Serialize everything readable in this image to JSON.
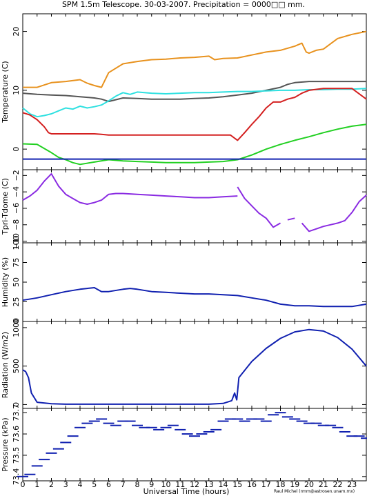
{
  "title": "SPM 1.5m Telescope. 30-03-2007. Precipitation = 0000□□ mm.",
  "xlabel": "Universal Time (hours)",
  "credit": "Raul Michel (rmm@astrosen.unam.mx)",
  "x_ticks": [
    "0",
    "1",
    "2",
    "3",
    "4",
    "5",
    "6",
    "7",
    "8",
    "9",
    "10",
    "11",
    "12",
    "13",
    "14",
    "15",
    "16",
    "17",
    "18",
    "19",
    "20",
    "21",
    "22",
    "23"
  ],
  "colors": {
    "orange": "#e8921e",
    "dark_gray": "#555555",
    "cyan": "#2ee0e0",
    "red": "#d42020",
    "green": "#22d022",
    "blue": "#1020b0",
    "purple": "#8a2be2"
  },
  "chart_data": [
    {
      "type": "line",
      "ylabel": "Temperature (C)",
      "ylim": [
        -3.5,
        23
      ],
      "y_ticks": [
        0,
        10,
        20
      ],
      "xlim": [
        0,
        24
      ],
      "series": [
        {
          "color": "orange",
          "x": [
            0,
            1,
            2,
            3,
            4,
            4.5,
            5,
            5.5,
            6,
            7,
            8,
            9,
            10,
            11,
            12,
            13,
            13.4,
            14,
            15,
            16,
            17,
            18,
            19,
            19.5,
            19.8,
            20,
            20.5,
            21,
            22,
            23,
            24
          ],
          "y": [
            10.5,
            10.5,
            11.3,
            11.5,
            11.8,
            11.2,
            10.8,
            10.5,
            13,
            14.5,
            14.9,
            15.2,
            15.3,
            15.5,
            15.6,
            15.8,
            15.2,
            15.4,
            15.5,
            16,
            16.5,
            16.8,
            17.5,
            18,
            16.5,
            16.3,
            16.8,
            17,
            18.8,
            19.5,
            20
          ]
        },
        {
          "color": "dark_gray",
          "x": [
            0,
            1,
            2,
            3,
            4,
            5,
            5.5,
            6,
            7,
            8,
            9,
            10,
            11,
            12,
            13,
            14,
            15,
            16,
            17,
            18,
            18.5,
            19,
            20,
            21,
            22,
            23,
            24
          ],
          "y": [
            9.5,
            9.3,
            9.2,
            9.1,
            8.9,
            8.7,
            8.5,
            8.1,
            8.7,
            8.6,
            8.5,
            8.5,
            8.5,
            8.6,
            8.7,
            8.9,
            9.2,
            9.5,
            10,
            10.5,
            11,
            11.3,
            11.5,
            11.5,
            11.5,
            11.5,
            11.5
          ]
        },
        {
          "color": "cyan",
          "x": [
            0,
            0.5,
            1,
            1.5,
            2,
            2.5,
            3,
            3.5,
            4,
            4.5,
            5,
            5.5,
            6,
            6.5,
            7,
            7.5,
            8,
            9,
            10,
            11,
            12,
            13,
            14,
            15,
            16,
            17,
            18,
            19,
            20,
            21,
            22,
            23,
            24
          ],
          "y": [
            7,
            6,
            5.5,
            5.7,
            6,
            6.5,
            7,
            6.8,
            7.3,
            7,
            7.2,
            7.5,
            8.2,
            9,
            9.6,
            9.3,
            9.7,
            9.5,
            9.4,
            9.5,
            9.6,
            9.6,
            9.7,
            9.8,
            9.8,
            9.9,
            10,
            10,
            10.1,
            10.1,
            10.2,
            10.2,
            10.3
          ]
        },
        {
          "color": "red",
          "x": [
            0,
            0.5,
            1,
            1.5,
            1.8,
            2,
            3,
            4,
            5,
            5.5,
            6,
            7,
            8,
            9,
            10,
            11,
            12,
            13,
            14,
            14.5,
            15,
            15.5,
            16,
            16.5,
            17,
            17.5,
            18,
            18.5,
            19,
            19.5,
            20,
            21,
            22,
            23,
            24
          ],
          "y": [
            6.2,
            5.8,
            5,
            3.8,
            2.8,
            2.6,
            2.6,
            2.6,
            2.6,
            2.5,
            2.4,
            2.4,
            2.4,
            2.4,
            2.4,
            2.4,
            2.4,
            2.4,
            2.4,
            2.4,
            1.5,
            2.8,
            4.2,
            5.5,
            7,
            8,
            8,
            8.5,
            8.8,
            9.5,
            10,
            10.3,
            10.3,
            10.3,
            8.5
          ]
        },
        {
          "color": "green",
          "x": [
            0,
            1,
            2,
            2.5,
            3,
            3.5,
            4,
            5,
            6,
            7,
            8,
            9,
            10,
            11,
            12,
            13,
            14,
            15,
            16,
            17,
            18,
            19,
            20,
            21,
            22,
            23,
            24
          ],
          "y": [
            0.9,
            0.8,
            -0.6,
            -1.4,
            -1.8,
            -2.3,
            -2.6,
            -2.2,
            -1.8,
            -2,
            -2.1,
            -2.2,
            -2.3,
            -2.3,
            -2.3,
            -2.2,
            -2.1,
            -1.8,
            -1,
            0,
            0.8,
            1.5,
            2.1,
            2.8,
            3.4,
            3.9,
            4.2
          ]
        },
        {
          "color": "blue",
          "x": [
            0,
            24
          ],
          "y": [
            -1.7,
            -1.7
          ]
        }
      ]
    },
    {
      "type": "line",
      "ylabel": "Tpri-Tdome (C)",
      "ylim": [
        -10.2,
        -1.3
      ],
      "y_ticks": [
        -10,
        -8,
        -6,
        -4,
        -2
      ],
      "y_tick_labels": [
        "−10",
        "−8",
        "−6",
        "−4",
        "−2"
      ],
      "xlim": [
        0,
        24
      ],
      "series": [
        {
          "color": "purple",
          "x": [
            0,
            0.5,
            1,
            1.5,
            2,
            2.5,
            3,
            3.5,
            4,
            4.5,
            5,
            5.5,
            6,
            6.5,
            7,
            8,
            9,
            10,
            11,
            12,
            13,
            14,
            15
          ],
          "y": [
            -5,
            -4.5,
            -3.8,
            -2.7,
            -1.8,
            -3.3,
            -4.3,
            -4.8,
            -5.3,
            -5.5,
            -5.3,
            -5.0,
            -4.3,
            -4.2,
            -4.2,
            -4.3,
            -4.4,
            -4.5,
            -4.6,
            -4.7,
            -4.7,
            -4.6,
            -4.5
          ]
        },
        {
          "color": "purple",
          "x": [
            15,
            15.5,
            16,
            16.5,
            17,
            17.5,
            18
          ],
          "y": [
            -3.4,
            -4.8,
            -5.7,
            -6.6,
            -7.2,
            -8.3,
            -7.8
          ]
        },
        {
          "color": "purple",
          "x": [
            18.5,
            19
          ],
          "y": [
            -7.4,
            -7.2
          ]
        },
        {
          "color": "purple",
          "x": [
            19.5,
            20,
            20.5,
            21,
            21.5,
            22,
            22.5,
            23,
            23.5,
            24
          ],
          "y": [
            -7.8,
            -8.8,
            -8.5,
            -8.2,
            -8.0,
            -7.8,
            -7.5,
            -6.5,
            -5.2,
            -4.4
          ]
        }
      ]
    },
    {
      "type": "line",
      "ylabel": "Humidity (%)",
      "ylim": [
        0,
        100
      ],
      "y_ticks": [
        0,
        25,
        50,
        75,
        100
      ],
      "xlim": [
        0,
        24
      ],
      "series": [
        {
          "color": "blue",
          "x": [
            0,
            1,
            2,
            3,
            4,
            4.5,
            5,
            5.5,
            6,
            7,
            7.5,
            8,
            9,
            10,
            11,
            12,
            13,
            14,
            15,
            16,
            17,
            18,
            19,
            20,
            21,
            22,
            23,
            24
          ],
          "y": [
            27,
            30,
            34,
            38,
            41,
            42,
            43,
            38,
            38,
            41,
            42,
            41,
            38,
            37,
            36,
            35,
            35,
            34,
            33,
            30,
            27,
            22,
            20,
            20,
            19,
            19,
            19,
            22
          ]
        }
      ]
    },
    {
      "type": "line",
      "ylabel": "Radiation (W/m2)",
      "ylim": [
        -50,
        1080
      ],
      "y_ticks": [
        0,
        500,
        1000
      ],
      "xlim": [
        0,
        24
      ],
      "series": [
        {
          "color": "blue",
          "x": [
            0,
            0.2,
            0.4,
            0.6,
            1,
            2,
            3,
            4,
            5,
            6,
            7,
            8,
            9,
            10,
            11,
            12,
            13,
            14,
            14.6,
            14.8,
            14.95,
            15.1,
            16,
            17,
            18,
            19,
            20,
            21,
            22,
            23,
            24
          ],
          "y": [
            450,
            430,
            350,
            150,
            30,
            10,
            5,
            5,
            5,
            5,
            5,
            5,
            5,
            5,
            5,
            5,
            5,
            15,
            50,
            150,
            60,
            350,
            560,
            730,
            860,
            945,
            975,
            955,
            870,
            720,
            500
          ]
        }
      ]
    },
    {
      "type": "scatter",
      "ylabel": "Pressure (kPa)",
      "ylim": [
        73.38,
        73.72
      ],
      "y_ticks": [
        73.4,
        73.5,
        73.6,
        73.7
      ],
      "xlim": [
        0,
        24
      ],
      "series": [
        {
          "color": "blue",
          "x": [
            0,
            0.5,
            1,
            1.5,
            2,
            2.5,
            3,
            3.5,
            4,
            4.5,
            5,
            5.5,
            6,
            6.5,
            7,
            7.5,
            8,
            8.5,
            9,
            9.5,
            10,
            10.5,
            11,
            11.5,
            12,
            12.5,
            13,
            13.5,
            14,
            14.5,
            15,
            15.5,
            16,
            16.5,
            17,
            17.5,
            18,
            18.5,
            19,
            19.5,
            20,
            20.5,
            21,
            21.5,
            22,
            22.5,
            23,
            23.5,
            24
          ],
          "y": [
            73.4,
            73.41,
            73.45,
            73.48,
            73.51,
            73.53,
            73.56,
            73.59,
            73.63,
            73.65,
            73.66,
            73.67,
            73.65,
            73.64,
            73.66,
            73.66,
            73.64,
            73.63,
            73.63,
            73.62,
            73.63,
            73.64,
            73.62,
            73.6,
            73.59,
            73.6,
            73.61,
            73.62,
            73.66,
            73.67,
            73.67,
            73.66,
            73.67,
            73.67,
            73.66,
            73.69,
            73.7,
            73.68,
            73.67,
            73.66,
            73.65,
            73.65,
            73.64,
            73.64,
            73.63,
            73.61,
            73.59,
            73.59,
            73.58
          ]
        }
      ]
    }
  ]
}
